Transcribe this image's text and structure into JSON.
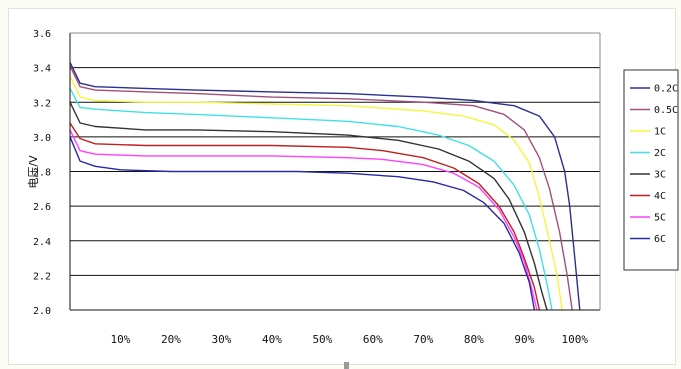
{
  "chart_data": {
    "type": "line",
    "title": "",
    "xlabel": "",
    "ylabel": "电压/V",
    "x_unit": "%",
    "xlim": [
      0,
      105
    ],
    "ylim": [
      2.0,
      3.6
    ],
    "y_ticks": [
      "2.0",
      "2.2",
      "2.4",
      "2.6",
      "2.8",
      "3.0",
      "3.2",
      "3.4",
      "3.6"
    ],
    "x_ticks": [
      "10%",
      "20%",
      "30%",
      "40%",
      "50%",
      "60%",
      "70%",
      "80%",
      "90%",
      "100%"
    ],
    "grid": "horizontal",
    "legend_position": "right",
    "series": [
      {
        "name": "0.2C",
        "color": "#2b2f8f",
        "points": [
          [
            0,
            3.43
          ],
          [
            2,
            3.31
          ],
          [
            5,
            3.29
          ],
          [
            15,
            3.28
          ],
          [
            25,
            3.27
          ],
          [
            40,
            3.26
          ],
          [
            55,
            3.25
          ],
          [
            70,
            3.23
          ],
          [
            80,
            3.21
          ],
          [
            88,
            3.18
          ],
          [
            93,
            3.12
          ],
          [
            96,
            3.0
          ],
          [
            98,
            2.8
          ],
          [
            99,
            2.6
          ],
          [
            100,
            2.3
          ],
          [
            101,
            2.0
          ]
        ]
      },
      {
        "name": "0.5C",
        "color": "#a0507a",
        "points": [
          [
            0,
            3.41
          ],
          [
            2,
            3.29
          ],
          [
            5,
            3.27
          ],
          [
            15,
            3.26
          ],
          [
            25,
            3.25
          ],
          [
            40,
            3.23
          ],
          [
            55,
            3.22
          ],
          [
            70,
            3.2
          ],
          [
            80,
            3.18
          ],
          [
            86,
            3.13
          ],
          [
            90,
            3.04
          ],
          [
            93,
            2.88
          ],
          [
            95,
            2.7
          ],
          [
            97,
            2.45
          ],
          [
            98.5,
            2.2
          ],
          [
            99.5,
            2.0
          ]
        ]
      },
      {
        "name": "1C",
        "color": "#f5f540",
        "points": [
          [
            0,
            3.35
          ],
          [
            2,
            3.23
          ],
          [
            5,
            3.21
          ],
          [
            15,
            3.2
          ],
          [
            25,
            3.2
          ],
          [
            40,
            3.19
          ],
          [
            55,
            3.18
          ],
          [
            70,
            3.15
          ],
          [
            78,
            3.12
          ],
          [
            84,
            3.07
          ],
          [
            88,
            2.98
          ],
          [
            91,
            2.85
          ],
          [
            93,
            2.65
          ],
          [
            95,
            2.4
          ],
          [
            96.5,
            2.2
          ],
          [
            97.5,
            2.0
          ]
        ]
      },
      {
        "name": "2C",
        "color": "#40e0e8",
        "points": [
          [
            0,
            3.28
          ],
          [
            2,
            3.17
          ],
          [
            5,
            3.16
          ],
          [
            15,
            3.14
          ],
          [
            25,
            3.13
          ],
          [
            40,
            3.11
          ],
          [
            55,
            3.09
          ],
          [
            65,
            3.06
          ],
          [
            73,
            3.01
          ],
          [
            79,
            2.95
          ],
          [
            84,
            2.86
          ],
          [
            88,
            2.72
          ],
          [
            91,
            2.55
          ],
          [
            93,
            2.35
          ],
          [
            94.5,
            2.15
          ],
          [
            95.5,
            2.0
          ]
        ]
      },
      {
        "name": "3C",
        "color": "#333333",
        "points": [
          [
            0,
            3.2
          ],
          [
            2,
            3.08
          ],
          [
            5,
            3.06
          ],
          [
            15,
            3.04
          ],
          [
            25,
            3.04
          ],
          [
            40,
            3.03
          ],
          [
            55,
            3.01
          ],
          [
            65,
            2.98
          ],
          [
            73,
            2.93
          ],
          [
            79,
            2.86
          ],
          [
            84,
            2.76
          ],
          [
            87,
            2.64
          ],
          [
            90,
            2.45
          ],
          [
            92,
            2.27
          ],
          [
            93.5,
            2.1
          ],
          [
            94.5,
            2.0
          ]
        ]
      },
      {
        "name": "4C",
        "color": "#c02020",
        "points": [
          [
            0,
            3.08
          ],
          [
            2,
            2.99
          ],
          [
            5,
            2.96
          ],
          [
            15,
            2.95
          ],
          [
            25,
            2.95
          ],
          [
            40,
            2.95
          ],
          [
            55,
            2.94
          ],
          [
            62,
            2.92
          ],
          [
            70,
            2.88
          ],
          [
            76,
            2.82
          ],
          [
            81,
            2.73
          ],
          [
            85,
            2.6
          ],
          [
            88,
            2.45
          ],
          [
            90,
            2.3
          ],
          [
            92,
            2.13
          ],
          [
            93,
            2.0
          ]
        ]
      },
      {
        "name": "5C",
        "color": "#ff40ff",
        "points": [
          [
            0,
            3.04
          ],
          [
            2,
            2.92
          ],
          [
            5,
            2.9
          ],
          [
            15,
            2.89
          ],
          [
            25,
            2.89
          ],
          [
            40,
            2.89
          ],
          [
            55,
            2.88
          ],
          [
            62,
            2.87
          ],
          [
            70,
            2.84
          ],
          [
            76,
            2.79
          ],
          [
            81,
            2.71
          ],
          [
            85,
            2.58
          ],
          [
            88,
            2.42
          ],
          [
            90,
            2.28
          ],
          [
            91.5,
            2.12
          ],
          [
            92.5,
            2.0
          ]
        ]
      },
      {
        "name": "6C",
        "color": "#2828a8",
        "points": [
          [
            0,
            3.0
          ],
          [
            2,
            2.86
          ],
          [
            5,
            2.83
          ],
          [
            10,
            2.81
          ],
          [
            20,
            2.8
          ],
          [
            30,
            2.8
          ],
          [
            45,
            2.8
          ],
          [
            55,
            2.79
          ],
          [
            65,
            2.77
          ],
          [
            72,
            2.74
          ],
          [
            78,
            2.69
          ],
          [
            82,
            2.62
          ],
          [
            86,
            2.5
          ],
          [
            89,
            2.33
          ],
          [
            91,
            2.16
          ],
          [
            92,
            2.0
          ]
        ]
      }
    ]
  }
}
